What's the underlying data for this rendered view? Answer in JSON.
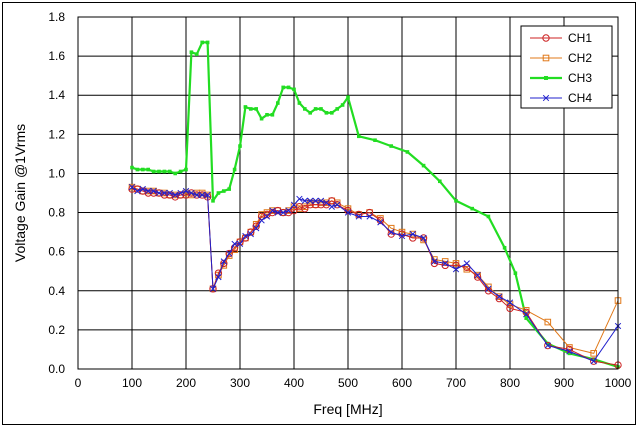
{
  "chart_data": {
    "type": "line",
    "xlabel": "Freq [MHz]",
    "ylabel": "Voltage Gain @1Vrms",
    "xlim": [
      0,
      1000
    ],
    "ylim": [
      0,
      1.8
    ],
    "xticks": [
      "0",
      "100",
      "200",
      "300",
      "400",
      "500",
      "600",
      "700",
      "800",
      "900",
      "1000"
    ],
    "yticks": [
      "0.0",
      "0.2",
      "0.4",
      "0.6",
      "0.8",
      "1.0",
      "1.2",
      "1.4",
      "1.6",
      "1.8"
    ],
    "grid": true,
    "legend_position": "top-right",
    "series": [
      {
        "name": "CH1",
        "color": "#cc2222",
        "marker": "circle",
        "points": [
          [
            100,
            0.92
          ],
          [
            110,
            0.92
          ],
          [
            120,
            0.91
          ],
          [
            130,
            0.9
          ],
          [
            140,
            0.9
          ],
          [
            150,
            0.9
          ],
          [
            160,
            0.89
          ],
          [
            170,
            0.89
          ],
          [
            180,
            0.88
          ],
          [
            190,
            0.89
          ],
          [
            200,
            0.89
          ],
          [
            210,
            0.9
          ],
          [
            220,
            0.89
          ],
          [
            230,
            0.89
          ],
          [
            240,
            0.88
          ],
          [
            250,
            0.41
          ],
          [
            260,
            0.49
          ],
          [
            270,
            0.54
          ],
          [
            280,
            0.59
          ],
          [
            290,
            0.62
          ],
          [
            300,
            0.65
          ],
          [
            310,
            0.67
          ],
          [
            320,
            0.7
          ],
          [
            330,
            0.73
          ],
          [
            340,
            0.78
          ],
          [
            350,
            0.79
          ],
          [
            360,
            0.8
          ],
          [
            370,
            0.81
          ],
          [
            380,
            0.8
          ],
          [
            390,
            0.8
          ],
          [
            400,
            0.81
          ],
          [
            410,
            0.83
          ],
          [
            420,
            0.82
          ],
          [
            430,
            0.84
          ],
          [
            440,
            0.84
          ],
          [
            450,
            0.84
          ],
          [
            460,
            0.84
          ],
          [
            470,
            0.86
          ],
          [
            480,
            0.84
          ],
          [
            500,
            0.81
          ],
          [
            520,
            0.79
          ],
          [
            540,
            0.8
          ],
          [
            560,
            0.76
          ],
          [
            580,
            0.69
          ],
          [
            600,
            0.69
          ],
          [
            620,
            0.67
          ],
          [
            640,
            0.67
          ],
          [
            660,
            0.54
          ],
          [
            680,
            0.53
          ],
          [
            700,
            0.53
          ],
          [
            720,
            0.52
          ],
          [
            740,
            0.47
          ],
          [
            760,
            0.4
          ],
          [
            780,
            0.36
          ],
          [
            800,
            0.31
          ],
          [
            830,
            0.29
          ],
          [
            870,
            0.12
          ],
          [
            910,
            0.1
          ],
          [
            955,
            0.04
          ],
          [
            1000,
            0.02
          ]
        ]
      },
      {
        "name": "CH2",
        "color": "#e07818",
        "marker": "square",
        "points": [
          [
            100,
            0.93
          ],
          [
            110,
            0.92
          ],
          [
            120,
            0.91
          ],
          [
            130,
            0.91
          ],
          [
            140,
            0.91
          ],
          [
            150,
            0.9
          ],
          [
            160,
            0.9
          ],
          [
            170,
            0.89
          ],
          [
            180,
            0.89
          ],
          [
            190,
            0.89
          ],
          [
            200,
            0.9
          ],
          [
            210,
            0.89
          ],
          [
            220,
            0.9
          ],
          [
            230,
            0.9
          ],
          [
            240,
            0.89
          ],
          [
            250,
            0.41
          ],
          [
            260,
            0.48
          ],
          [
            270,
            0.53
          ],
          [
            280,
            0.58
          ],
          [
            290,
            0.61
          ],
          [
            300,
            0.65
          ],
          [
            310,
            0.67
          ],
          [
            320,
            0.7
          ],
          [
            330,
            0.74
          ],
          [
            340,
            0.79
          ],
          [
            350,
            0.8
          ],
          [
            360,
            0.81
          ],
          [
            370,
            0.81
          ],
          [
            380,
            0.8
          ],
          [
            390,
            0.81
          ],
          [
            400,
            0.83
          ],
          [
            410,
            0.82
          ],
          [
            420,
            0.83
          ],
          [
            430,
            0.85
          ],
          [
            440,
            0.84
          ],
          [
            450,
            0.85
          ],
          [
            460,
            0.85
          ],
          [
            470,
            0.86
          ],
          [
            480,
            0.85
          ],
          [
            500,
            0.82
          ],
          [
            520,
            0.79
          ],
          [
            540,
            0.8
          ],
          [
            560,
            0.77
          ],
          [
            580,
            0.72
          ],
          [
            600,
            0.7
          ],
          [
            620,
            0.69
          ],
          [
            640,
            0.66
          ],
          [
            660,
            0.56
          ],
          [
            680,
            0.55
          ],
          [
            700,
            0.54
          ],
          [
            720,
            0.51
          ],
          [
            740,
            0.48
          ],
          [
            760,
            0.42
          ],
          [
            780,
            0.37
          ],
          [
            800,
            0.33
          ],
          [
            830,
            0.3
          ],
          [
            870,
            0.24
          ],
          [
            910,
            0.11
          ],
          [
            955,
            0.08
          ],
          [
            1000,
            0.35
          ]
        ]
      },
      {
        "name": "CH3",
        "color": "#22dd22",
        "marker": "square",
        "points": [
          [
            100,
            1.03
          ],
          [
            110,
            1.02
          ],
          [
            120,
            1.02
          ],
          [
            130,
            1.02
          ],
          [
            140,
            1.01
          ],
          [
            150,
            1.01
          ],
          [
            160,
            1.01
          ],
          [
            170,
            1.01
          ],
          [
            180,
            1.0
          ],
          [
            190,
            1.01
          ],
          [
            200,
            1.02
          ],
          [
            210,
            1.62
          ],
          [
            220,
            1.61
          ],
          [
            230,
            1.67
          ],
          [
            240,
            1.67
          ],
          [
            250,
            0.86
          ],
          [
            260,
            0.9
          ],
          [
            270,
            0.91
          ],
          [
            280,
            0.92
          ],
          [
            290,
            1.02
          ],
          [
            300,
            1.14
          ],
          [
            310,
            1.34
          ],
          [
            320,
            1.33
          ],
          [
            330,
            1.33
          ],
          [
            340,
            1.28
          ],
          [
            350,
            1.3
          ],
          [
            360,
            1.3
          ],
          [
            370,
            1.36
          ],
          [
            380,
            1.44
          ],
          [
            390,
            1.44
          ],
          [
            400,
            1.43
          ],
          [
            410,
            1.36
          ],
          [
            420,
            1.33
          ],
          [
            430,
            1.31
          ],
          [
            440,
            1.33
          ],
          [
            450,
            1.33
          ],
          [
            460,
            1.31
          ],
          [
            470,
            1.31
          ],
          [
            480,
            1.33
          ],
          [
            490,
            1.35
          ],
          [
            500,
            1.39
          ],
          [
            520,
            1.19
          ],
          [
            550,
            1.17
          ],
          [
            580,
            1.14
          ],
          [
            610,
            1.11
          ],
          [
            640,
            1.04
          ],
          [
            670,
            0.96
          ],
          [
            700,
            0.86
          ],
          [
            730,
            0.82
          ],
          [
            760,
            0.78
          ],
          [
            790,
            0.62
          ],
          [
            810,
            0.49
          ],
          [
            830,
            0.26
          ],
          [
            870,
            0.13
          ],
          [
            910,
            0.08
          ],
          [
            955,
            0.05
          ],
          [
            1000,
            0.01
          ]
        ]
      },
      {
        "name": "CH4",
        "color": "#2020cc",
        "marker": "x",
        "points": [
          [
            100,
            0.93
          ],
          [
            110,
            0.91
          ],
          [
            120,
            0.92
          ],
          [
            130,
            0.91
          ],
          [
            140,
            0.91
          ],
          [
            150,
            0.9
          ],
          [
            160,
            0.9
          ],
          [
            170,
            0.9
          ],
          [
            180,
            0.89
          ],
          [
            190,
            0.9
          ],
          [
            200,
            0.91
          ],
          [
            210,
            0.9
          ],
          [
            220,
            0.89
          ],
          [
            230,
            0.89
          ],
          [
            240,
            0.89
          ],
          [
            250,
            0.41
          ],
          [
            260,
            0.47
          ],
          [
            270,
            0.55
          ],
          [
            280,
            0.59
          ],
          [
            290,
            0.64
          ],
          [
            300,
            0.64
          ],
          [
            310,
            0.68
          ],
          [
            320,
            0.69
          ],
          [
            330,
            0.72
          ],
          [
            340,
            0.76
          ],
          [
            350,
            0.78
          ],
          [
            360,
            0.81
          ],
          [
            370,
            0.8
          ],
          [
            380,
            0.8
          ],
          [
            390,
            0.81
          ],
          [
            400,
            0.84
          ],
          [
            410,
            0.87
          ],
          [
            420,
            0.86
          ],
          [
            430,
            0.86
          ],
          [
            440,
            0.86
          ],
          [
            450,
            0.86
          ],
          [
            460,
            0.85
          ],
          [
            470,
            0.83
          ],
          [
            480,
            0.84
          ],
          [
            500,
            0.8
          ],
          [
            520,
            0.78
          ],
          [
            540,
            0.78
          ],
          [
            560,
            0.75
          ],
          [
            580,
            0.7
          ],
          [
            600,
            0.68
          ],
          [
            620,
            0.69
          ],
          [
            640,
            0.67
          ],
          [
            660,
            0.55
          ],
          [
            680,
            0.54
          ],
          [
            700,
            0.51
          ],
          [
            720,
            0.54
          ],
          [
            740,
            0.48
          ],
          [
            760,
            0.41
          ],
          [
            780,
            0.37
          ],
          [
            800,
            0.34
          ],
          [
            830,
            0.28
          ],
          [
            870,
            0.12
          ],
          [
            910,
            0.09
          ],
          [
            955,
            0.04
          ],
          [
            1000,
            0.22
          ]
        ]
      }
    ]
  }
}
